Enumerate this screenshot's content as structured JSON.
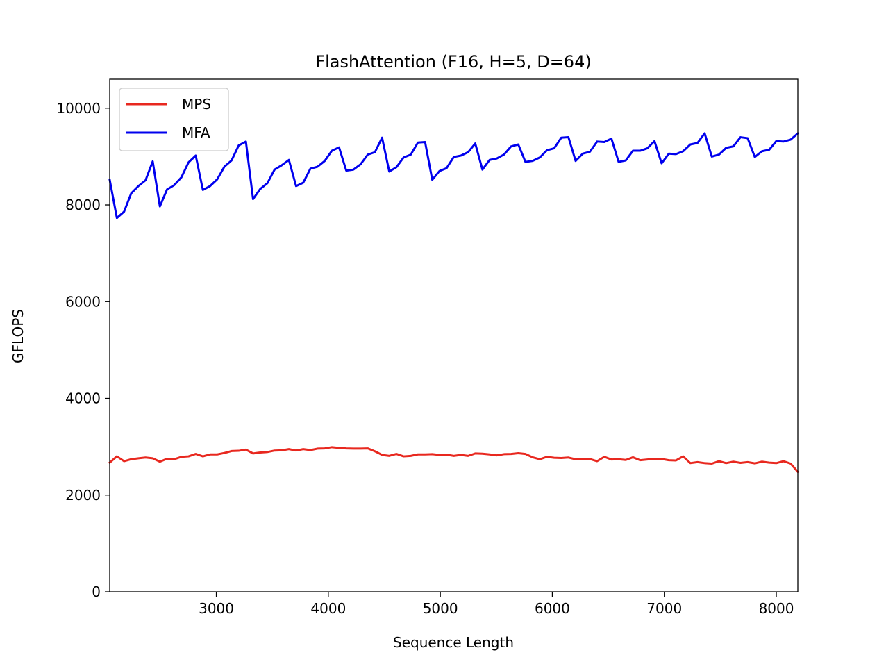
{
  "chart_data": {
    "type": "line",
    "title": "FlashAttention (F16, H=5, D=64)",
    "xlabel": "Sequence Length",
    "ylabel": "GFLOPS",
    "xlim": [
      2048,
      8192
    ],
    "ylim": [
      0,
      10600
    ],
    "xticks": [
      3000,
      4000,
      5000,
      6000,
      7000,
      8000
    ],
    "yticks": [
      0,
      2000,
      4000,
      6000,
      8000,
      10000
    ],
    "grid": false,
    "legend_position": "upper-left",
    "x": [
      2048,
      2112,
      2176,
      2240,
      2304,
      2368,
      2432,
      2496,
      2560,
      2624,
      2688,
      2752,
      2816,
      2880,
      2944,
      3008,
      3072,
      3136,
      3200,
      3264,
      3328,
      3392,
      3456,
      3520,
      3584,
      3648,
      3712,
      3776,
      3840,
      3904,
      3968,
      4032,
      4096,
      4160,
      4224,
      4288,
      4352,
      4416,
      4480,
      4544,
      4608,
      4672,
      4736,
      4800,
      4864,
      4928,
      4992,
      5056,
      5120,
      5184,
      5248,
      5312,
      5376,
      5440,
      5504,
      5568,
      5632,
      5696,
      5760,
      5824,
      5888,
      5952,
      6016,
      6080,
      6144,
      6208,
      6272,
      6336,
      6400,
      6464,
      6528,
      6592,
      6656,
      6720,
      6784,
      6848,
      6912,
      6976,
      7040,
      7104,
      7168,
      7232,
      7296,
      7360,
      7424,
      7488,
      7552,
      7616,
      7680,
      7744,
      7808,
      7872,
      7936,
      8000,
      8064,
      8128,
      8192
    ],
    "series": [
      {
        "name": "MPS",
        "color": "#e8281f",
        "values": [
          2670,
          2800,
          2700,
          2740,
          2760,
          2775,
          2760,
          2690,
          2750,
          2740,
          2790,
          2800,
          2850,
          2800,
          2840,
          2840,
          2870,
          2910,
          2915,
          2940,
          2860,
          2880,
          2890,
          2920,
          2925,
          2950,
          2920,
          2950,
          2930,
          2960,
          2965,
          2990,
          2975,
          2965,
          2960,
          2960,
          2965,
          2905,
          2830,
          2810,
          2850,
          2800,
          2810,
          2840,
          2840,
          2845,
          2830,
          2835,
          2810,
          2830,
          2810,
          2860,
          2855,
          2840,
          2820,
          2845,
          2850,
          2865,
          2850,
          2780,
          2740,
          2790,
          2770,
          2765,
          2775,
          2740,
          2740,
          2745,
          2700,
          2790,
          2735,
          2740,
          2725,
          2780,
          2720,
          2735,
          2750,
          2745,
          2720,
          2715,
          2800,
          2660,
          2680,
          2660,
          2650,
          2700,
          2660,
          2690,
          2665,
          2680,
          2655,
          2690,
          2670,
          2660,
          2700,
          2650,
          2480
        ]
      },
      {
        "name": "MFA",
        "color": "#0000ee",
        "values": [
          8520,
          7730,
          7860,
          8240,
          8390,
          8510,
          8900,
          7970,
          8320,
          8410,
          8570,
          8880,
          9020,
          8310,
          8390,
          8530,
          8790,
          8920,
          9230,
          9310,
          8120,
          8330,
          8450,
          8730,
          8820,
          8930,
          8390,
          8460,
          8750,
          8790,
          8910,
          9120,
          9190,
          8710,
          8730,
          8840,
          9040,
          9090,
          9390,
          8690,
          8780,
          8980,
          9040,
          9290,
          9300,
          8520,
          8700,
          8760,
          8990,
          9020,
          9090,
          9270,
          8730,
          8930,
          8960,
          9040,
          9210,
          9250,
          8890,
          8910,
          8980,
          9130,
          9170,
          9390,
          9400,
          8910,
          9060,
          9100,
          9310,
          9300,
          9370,
          8890,
          8920,
          9120,
          9120,
          9170,
          9320,
          8860,
          9060,
          9050,
          9110,
          9250,
          9280,
          9480,
          9000,
          9040,
          9180,
          9210,
          9400,
          9380,
          8990,
          9110,
          9140,
          9320,
          9310,
          9350,
          9480
        ]
      }
    ]
  }
}
